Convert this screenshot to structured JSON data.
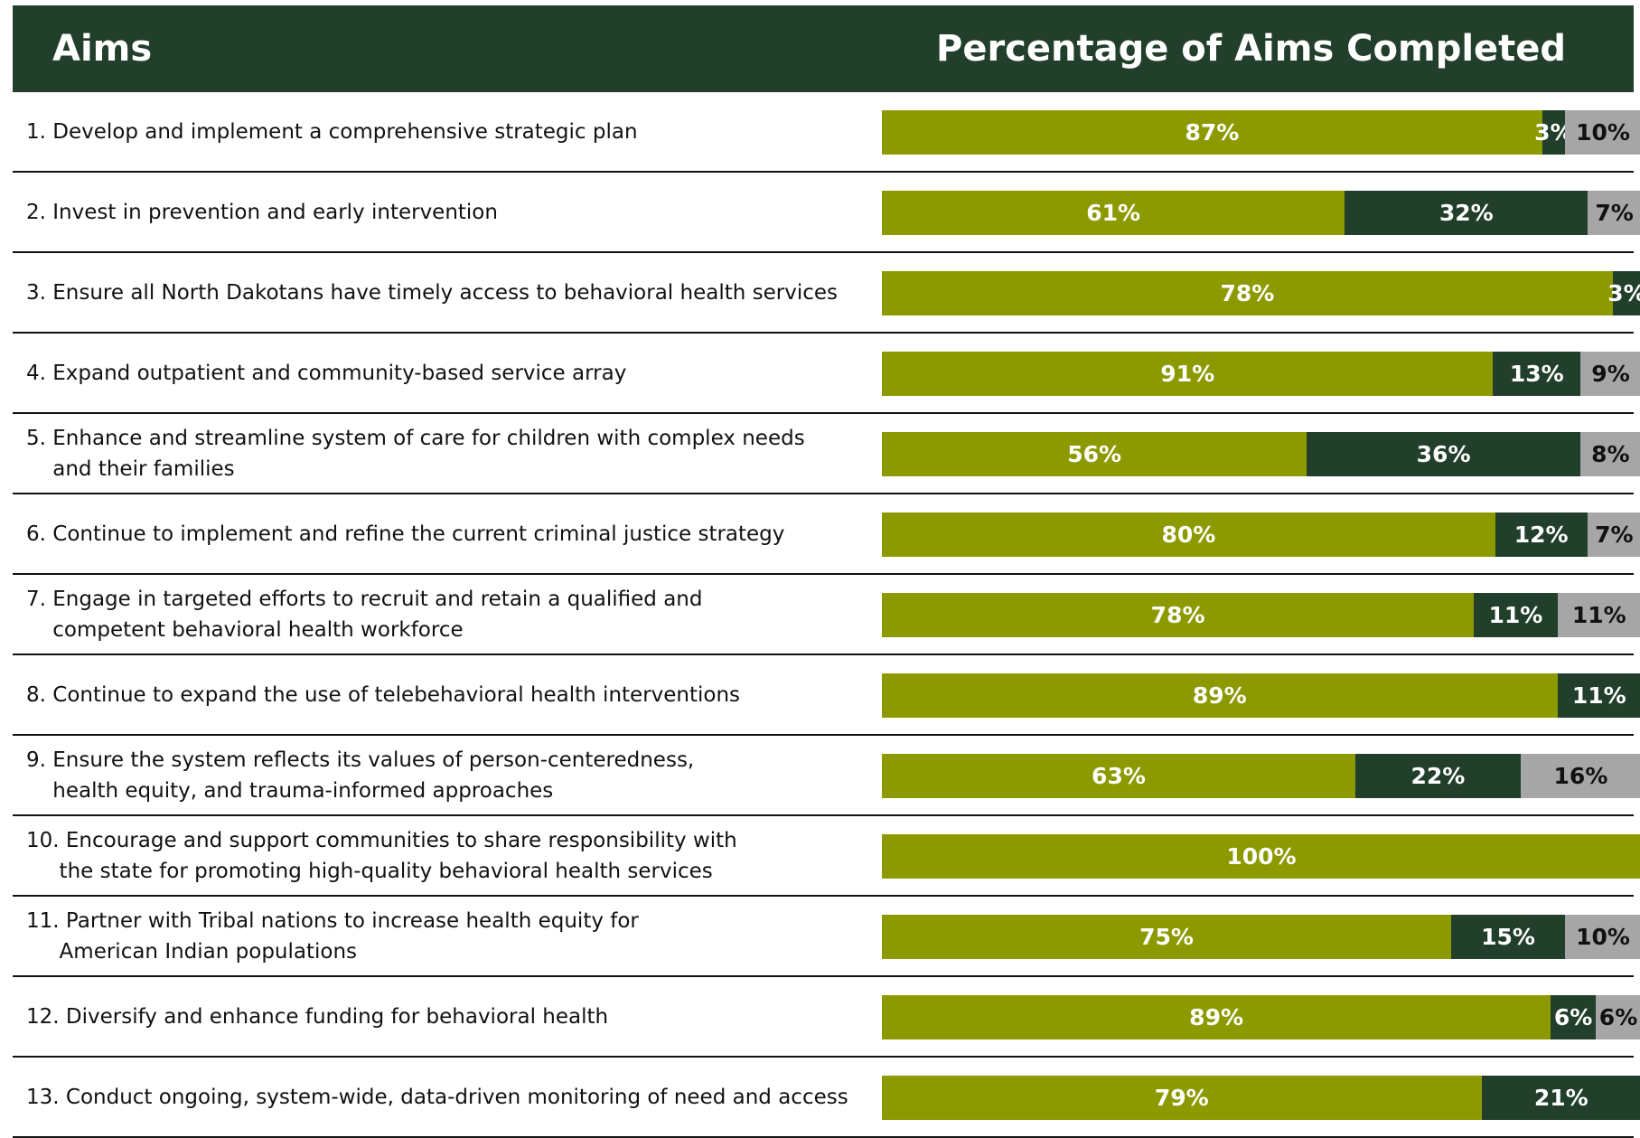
{
  "chart_data": {
    "type": "bar",
    "orientation": "horizontal",
    "stacked": "percent",
    "header": {
      "left": "Aims",
      "right": "Percentage of Aims Completed"
    },
    "categories": [
      "1. Develop and implement a comprehensive strategic plan",
      "2. Invest in prevention and early intervention",
      "3. Ensure all North Dakotans have timely access to behavioral health services",
      "4. Expand outpatient and community-based service array",
      "5. Enhance and streamline system of care for children with complex needs\n    and their families",
      "6. Continue to implement and refine the current criminal justice strategy",
      "7. Engage in targeted efforts to recruit and retain a qualified and\n    competent behavioral health workforce",
      "8. Continue to expand the use of telebehavioral health interventions",
      "9. Ensure the system reflects its values of person-centeredness,\n    health equity, and trauma-informed approaches",
      "10. Encourage and support communities to share responsibility with\n     the state for promoting high-quality behavioral health services",
      "11. Partner with Tribal nations to increase health equity for\n     American Indian populations",
      "12. Diversify and enhance funding for behavioral health",
      "13. Conduct ongoing, system-wide, data-driven monitoring of need and access"
    ],
    "series": [
      {
        "color": "#8c9a00",
        "values": [
          87,
          61,
          78,
          91,
          56,
          80,
          78,
          89,
          63,
          100,
          75,
          89,
          79
        ],
        "value_labels": [
          "87%",
          "61%",
          "78%",
          "91%",
          "56%",
          "80%",
          "78%",
          "89%",
          "63%",
          "100%",
          "75%",
          "89%",
          "79%"
        ]
      },
      {
        "color": "#213f2a",
        "values": [
          3,
          32,
          3,
          13,
          36,
          12,
          11,
          11,
          22,
          null,
          15,
          6,
          21
        ],
        "value_labels": [
          "3%",
          "32%",
          "3%",
          "13%",
          "36%",
          "12%",
          "11%",
          "11%",
          "22%",
          null,
          "15%",
          "6%",
          "21%"
        ]
      },
      {
        "color": "#a6a6a6",
        "values": [
          10,
          7,
          null,
          9,
          8,
          7,
          11,
          null,
          16,
          null,
          10,
          6,
          null
        ],
        "value_labels": [
          "10%",
          "7%",
          null,
          "9%",
          "8%",
          "7%",
          "11%",
          null,
          "16%",
          null,
          "10%",
          "6%",
          null
        ]
      }
    ]
  }
}
